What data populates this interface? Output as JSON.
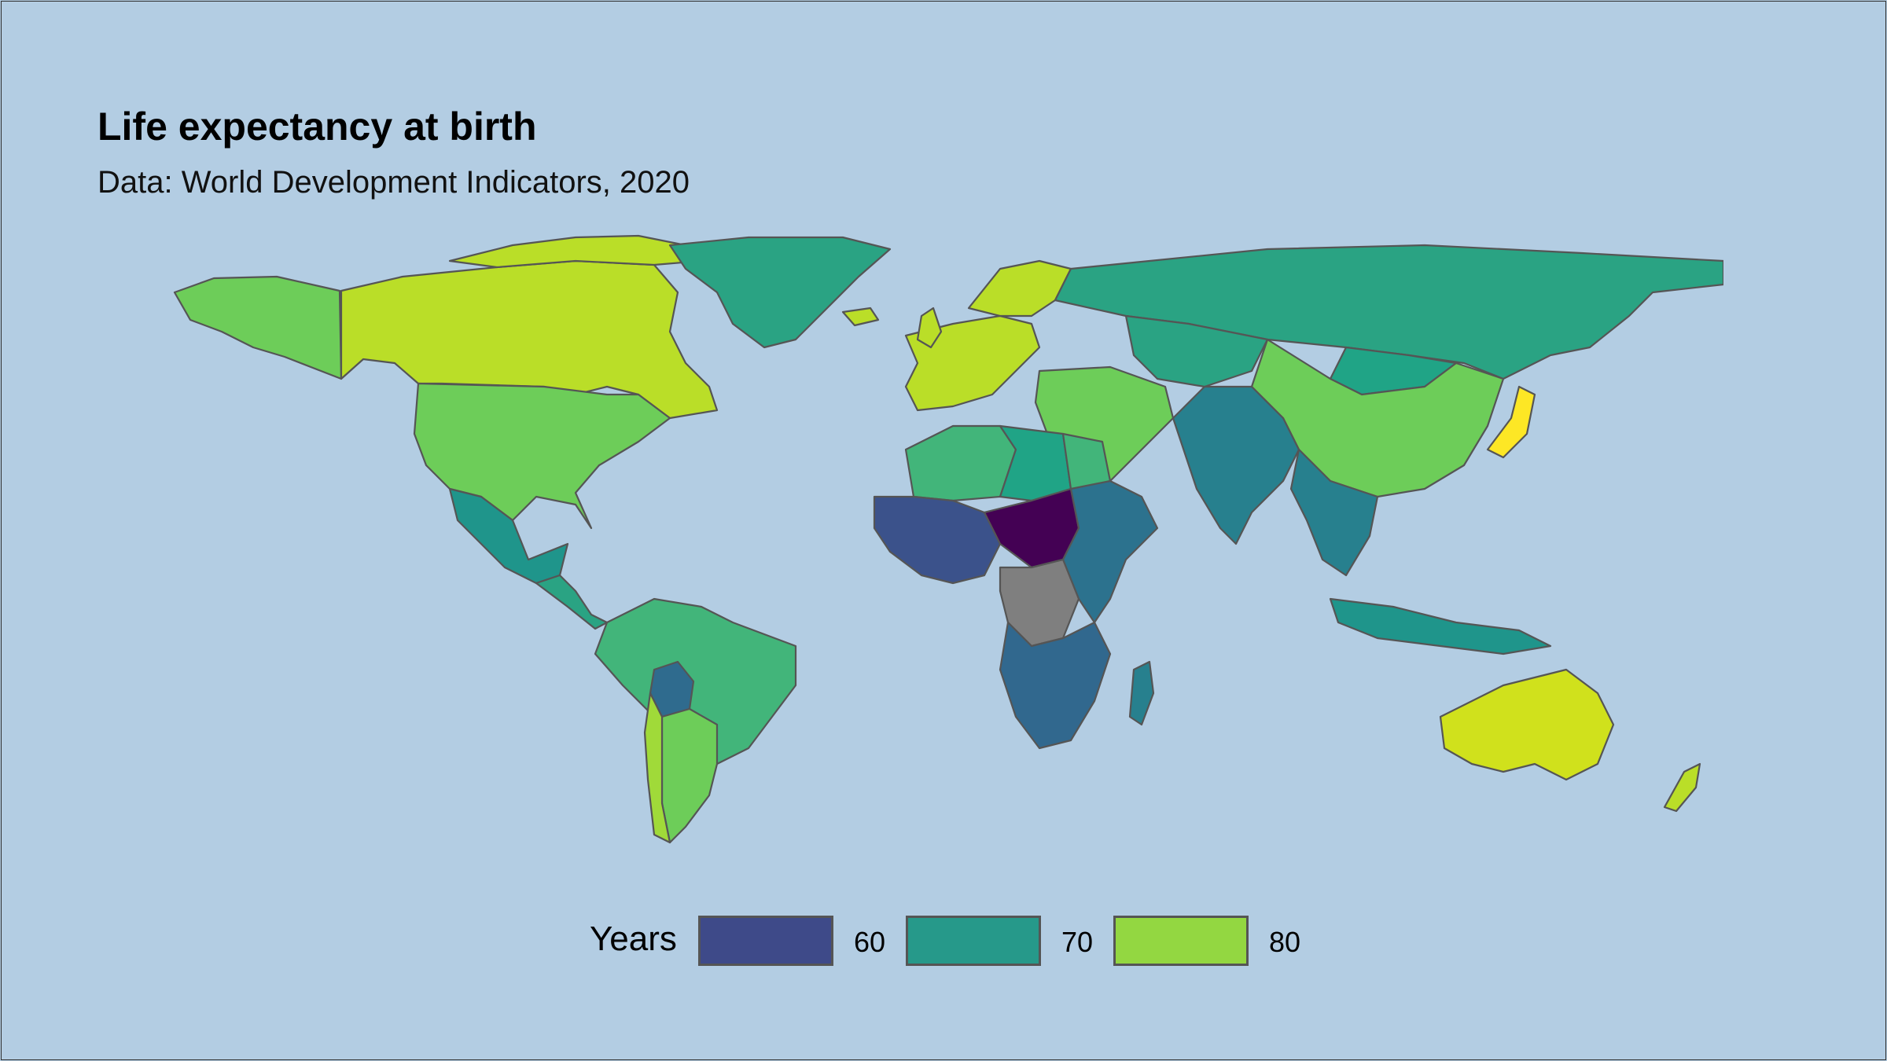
{
  "title": "Life expectancy at birth",
  "subtitle": "Data: World Development Indicators, 2020",
  "legend": {
    "title": "Years",
    "items": [
      {
        "label": "60",
        "color": "#3e4a89"
      },
      {
        "label": "70",
        "color": "#26998a"
      },
      {
        "label": "80",
        "color": "#93d741"
      }
    ]
  },
  "colors": {
    "ocean": "#b3cde3",
    "no_data": "#7f7f7f",
    "border": "#555555"
  },
  "regions": [
    {
      "name": "Alaska",
      "color": "#6dcd59"
    },
    {
      "name": "Canada",
      "color": "#bade28"
    },
    {
      "name": "United States",
      "color": "#6dcd59"
    },
    {
      "name": "Mexico",
      "color": "#1f958b"
    },
    {
      "name": "Central America",
      "color": "#2aa383"
    },
    {
      "name": "Greenland",
      "color": "#2aa383"
    },
    {
      "name": "South America",
      "color": "#42b57a"
    },
    {
      "name": "Bolivia",
      "color": "#2f6b8e"
    },
    {
      "name": "Argentina",
      "color": "#6dcd59"
    },
    {
      "name": "Chile",
      "color": "#a0da39"
    },
    {
      "name": "Western Europe",
      "color": "#bade28"
    },
    {
      "name": "Scandinavia",
      "color": "#bade28"
    },
    {
      "name": "Russia",
      "color": "#2aa383"
    },
    {
      "name": "North Africa",
      "color": "#42b57a"
    },
    {
      "name": "Libya",
      "color": "#20a486"
    },
    {
      "name": "Middle East",
      "color": "#6dcd59"
    },
    {
      "name": "Central Asia",
      "color": "#2aa383"
    },
    {
      "name": "Mongolia",
      "color": "#20a486"
    },
    {
      "name": "India",
      "color": "#27808e"
    },
    {
      "name": "China",
      "color": "#6dcd59"
    },
    {
      "name": "Japan",
      "color": "#fde725"
    },
    {
      "name": "Southeast Asia",
      "color": "#27808e"
    },
    {
      "name": "Indonesia",
      "color": "#1f958b"
    },
    {
      "name": "Australia",
      "color": "#d0e11c"
    },
    {
      "name": "New Zealand",
      "color": "#bade28"
    },
    {
      "name": "West Africa",
      "color": "#3b528b"
    },
    {
      "name": "Sahel",
      "color": "#440154"
    },
    {
      "name": "Central Africa",
      "color": "#7f7f7f"
    },
    {
      "name": "East Africa",
      "color": "#2c728e"
    },
    {
      "name": "Southern Africa",
      "color": "#31688e"
    },
    {
      "name": "Madagascar",
      "color": "#27808e"
    }
  ]
}
